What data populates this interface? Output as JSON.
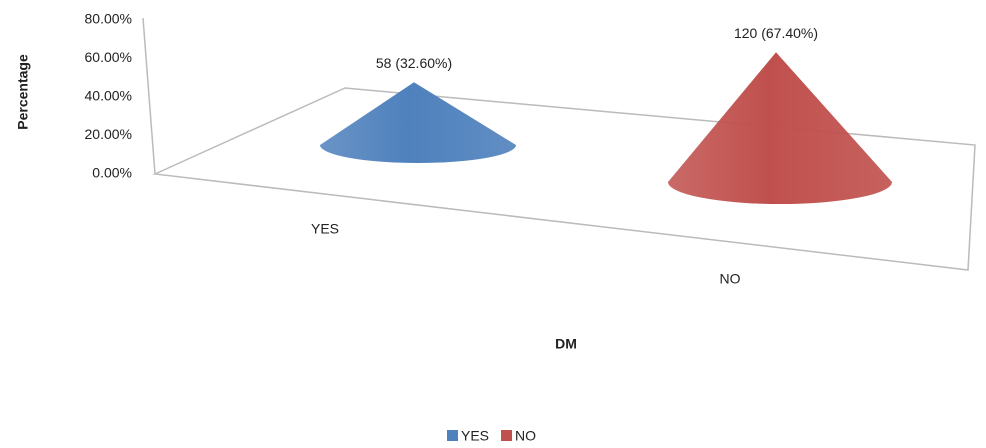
{
  "chart_data": {
    "type": "cone",
    "categories": [
      "YES",
      "NO"
    ],
    "values": [
      32.6,
      67.4
    ],
    "value_labels": [
      "58 (32.60%)",
      "120 (67.40%)"
    ],
    "colors": [
      "#4f81bd",
      "#c0504d"
    ],
    "x_label": "DM",
    "y_label": "Percentage",
    "ylim": [
      0,
      80
    ],
    "yticks": [
      {
        "value": 0,
        "label": "0.00%"
      },
      {
        "value": 20,
        "label": "20.00%"
      },
      {
        "value": 40,
        "label": "40.00%"
      },
      {
        "value": 60,
        "label": "60.00%"
      },
      {
        "value": 80,
        "label": "80.00%"
      }
    ],
    "legend": "bottom"
  }
}
